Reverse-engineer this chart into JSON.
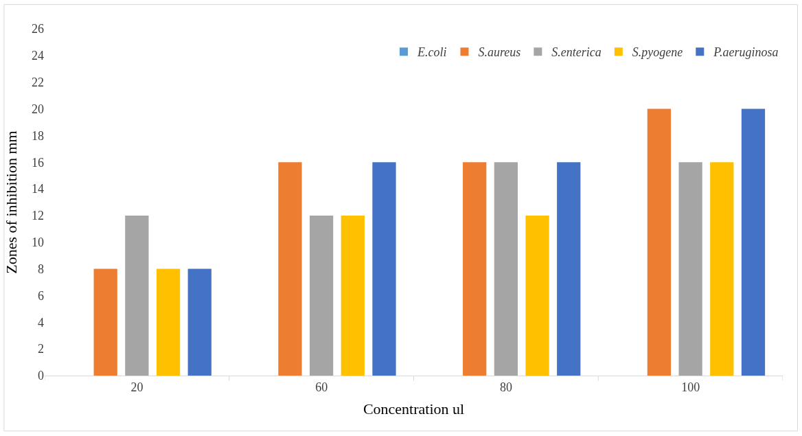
{
  "chart_data": {
    "type": "bar",
    "xlabel": "Concentration ul",
    "ylabel": "Zones of inhibition mm",
    "categories": [
      "20",
      "60",
      "80",
      "100"
    ],
    "series": [
      {
        "name": "E.coli",
        "color": "#5b9bd5",
        "values": [
          0,
          0,
          0,
          0
        ]
      },
      {
        "name": "S.aureus",
        "color": "#ed7d31",
        "values": [
          8,
          16,
          16,
          20
        ]
      },
      {
        "name": "S.enterica",
        "color": "#a5a5a5",
        "values": [
          12,
          12,
          16,
          16
        ]
      },
      {
        "name": "S.pyogene",
        "color": "#ffc000",
        "values": [
          8,
          12,
          12,
          16
        ]
      },
      {
        "name": "P.aeruginosa",
        "color": "#4472c4",
        "values": [
          8,
          16,
          16,
          20
        ]
      }
    ],
    "ylim": [
      0,
      26
    ],
    "yticks": [
      0,
      2,
      4,
      6,
      8,
      10,
      12,
      14,
      16,
      18,
      20,
      22,
      24,
      26
    ],
    "grid": false,
    "legend": "top right"
  }
}
